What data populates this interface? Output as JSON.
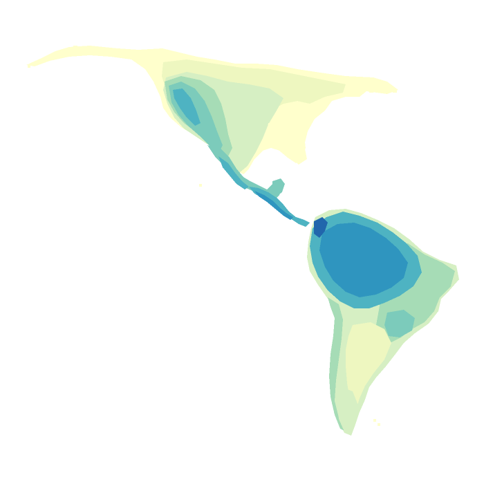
{
  "map": {
    "type": "choropleth-raster",
    "region": "Americas",
    "legend": null,
    "palette": {
      "c1": "#ffffcc",
      "c2": "#eef7c0",
      "c3": "#d6efc3",
      "c4": "#a6dcb6",
      "c5": "#7ccbbb",
      "c6": "#4eb3c2",
      "c7": "#2f95bf",
      "c8": "#2166ac"
    }
  }
}
